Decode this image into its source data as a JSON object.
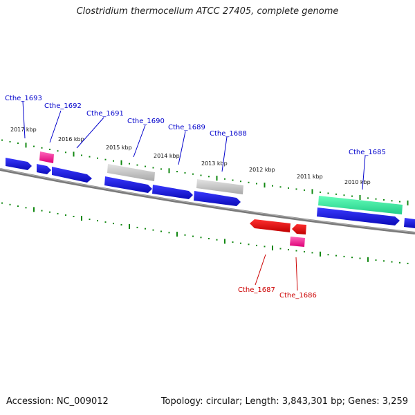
{
  "title": "Clostridium thermocellum ATCC 27405, complete genome",
  "footer": {
    "accession_label": "Accession:",
    "accession": "NC_009012",
    "topology_label": "Topology:",
    "topology": "circular",
    "length_label": "Length:",
    "length": "3,843,301 bp",
    "genes_label": "Genes:",
    "genes": "3,259"
  },
  "colors": {
    "backbone": "#808080",
    "forward_cds": "#1010e0",
    "reverse_cds": "#e01010",
    "rna": "#ff44aa",
    "pseudo": "#c8c8c8",
    "highlight": "#33ee99",
    "tick": "#118811",
    "label_forward": "#0000cc",
    "label_reverse": "#cc0000"
  },
  "scale_labels": [
    "2017 kbp",
    "2016 kbp",
    "2015 kbp",
    "2014 kbp",
    "2013 kbp",
    "2012 kbp",
    "2011 kbp",
    "2010 kbp"
  ],
  "gene_labels": [
    {
      "name": "Cthe_1693",
      "strand": "forward"
    },
    {
      "name": "Cthe_1692",
      "strand": "forward"
    },
    {
      "name": "Cthe_1691",
      "strand": "forward"
    },
    {
      "name": "Cthe_1690",
      "strand": "forward"
    },
    {
      "name": "Cthe_1689",
      "strand": "forward"
    },
    {
      "name": "Cthe_1688",
      "strand": "forward"
    },
    {
      "name": "Cthe_1685",
      "strand": "forward"
    },
    {
      "name": "Cthe_1687",
      "strand": "reverse"
    },
    {
      "name": "Cthe_1686",
      "strand": "reverse"
    }
  ]
}
